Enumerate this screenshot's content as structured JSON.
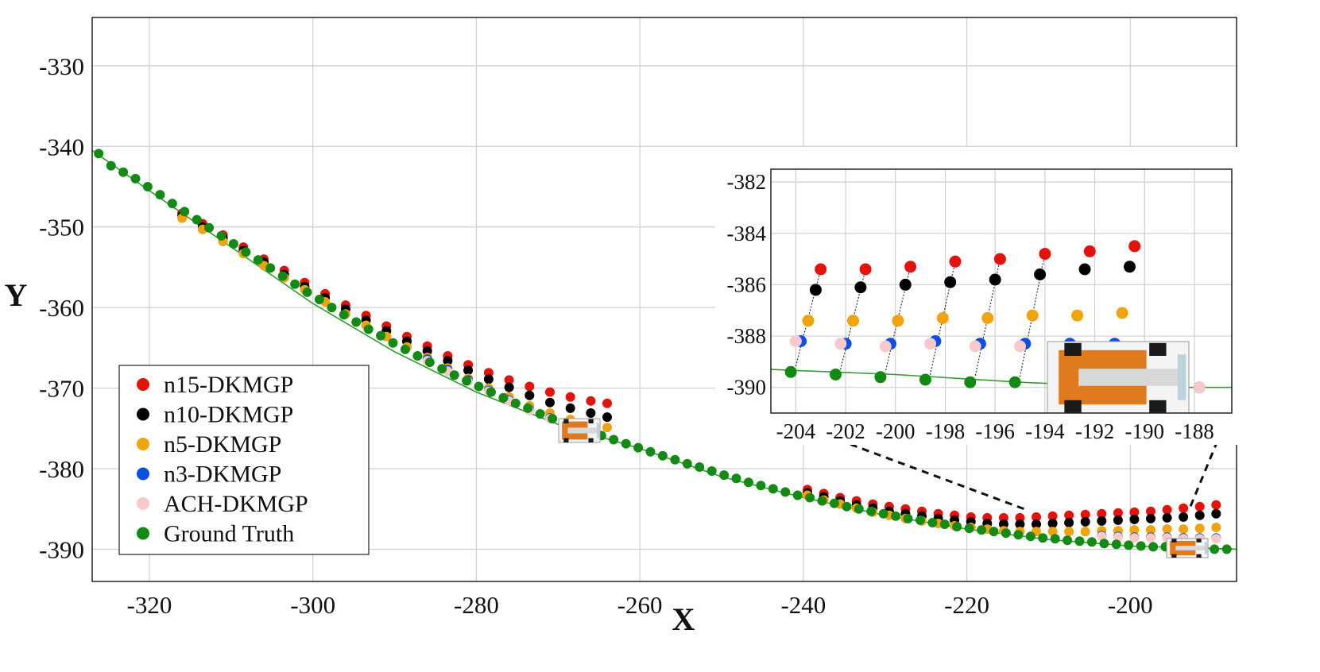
{
  "chart_data": [
    {
      "type": "scatter",
      "title": "",
      "xlabel": "X",
      "ylabel": "Y",
      "xlim": [
        -327,
        -187
      ],
      "ylim": [
        -394,
        -324
      ],
      "xticks": [
        -320,
        -300,
        -280,
        -260,
        -240,
        -220,
        -200
      ],
      "yticks": [
        -330,
        -340,
        -350,
        -360,
        -370,
        -380,
        -390
      ],
      "grid": true,
      "legend_position": "bottom-left",
      "colors": {
        "n15-DKMGP": "#e3120b",
        "n10-DKMGP": "#000000",
        "n5-DKMGP": "#f0a30a",
        "n3-DKMGP": "#0b4fe6",
        "ACH-DKMGP": "#f7c9c9",
        "Ground Truth": "#138a13"
      },
      "legend": [
        "n15-DKMGP",
        "n10-DKMGP",
        "n5-DKMGP",
        "n3-DKMGP",
        "ACH-DKMGP",
        "Ground Truth"
      ],
      "ground_truth_line": {
        "x": [
          -327,
          -320,
          -310,
          -300,
          -290,
          -280,
          -270,
          -265,
          -260,
          -250,
          -240,
          -230,
          -220,
          -210,
          -200,
          -190,
          -187
        ],
        "y": [
          -340.5,
          -345.5,
          -352.5,
          -359.5,
          -365.5,
          -370.5,
          -374.5,
          -376.0,
          -377.5,
          -381.0,
          -383.6,
          -385.8,
          -387.5,
          -388.8,
          -389.6,
          -389.9,
          -390.0
        ]
      },
      "series": [
        {
          "name": "Ground Truth",
          "x": [
            -326.2,
            -324.7,
            -323.2,
            -321.7,
            -320.2,
            -318.7,
            -317.2,
            -315.7,
            -314.2,
            -312.7,
            -311.2,
            -309.7,
            -308.2,
            -306.7,
            -305.2,
            -303.7,
            -302.2,
            -300.7,
            -299.2,
            -297.7,
            -296.2,
            -294.7,
            -293.2,
            -291.7,
            -290.2,
            -288.7,
            -287.2,
            -285.7,
            -284.2,
            -282.7,
            -281.2,
            -279.7,
            -278.2,
            -276.7,
            -275.2,
            -273.7,
            -272.2,
            -270.7,
            -269.2,
            -267.7,
            -266.2,
            -264.7,
            -263.2,
            -261.7,
            -260.2,
            -258.7,
            -257.2,
            -255.7,
            -254.2,
            -252.7,
            -251.2,
            -249.7,
            -248.2,
            -246.7,
            -245.2,
            -243.7,
            -242.2,
            -240.7,
            -239.2,
            -237.7,
            -236.2,
            -234.7,
            -233.2,
            -231.7,
            -230.2,
            -228.7,
            -227.2,
            -225.7,
            -224.2,
            -222.7,
            -221.2,
            -219.7,
            -218.2,
            -216.7,
            -215.2,
            -213.7,
            -212.2,
            -210.7,
            -209.2,
            -207.7,
            -206.2,
            -204.7,
            -203.2,
            -201.7,
            -200.2,
            -198.7,
            -197.2,
            -195.7,
            -194.2,
            -192.7,
            -191.2,
            -189.7,
            -188.2
          ],
          "y": [
            -340.9,
            -342.4,
            -343.2,
            -344.0,
            -345.0,
            -346.0,
            -347.1,
            -348.1,
            -349.1,
            -350.1,
            -351.1,
            -352.1,
            -353.1,
            -354.1,
            -355.1,
            -356.1,
            -357.1,
            -358.1,
            -359.0,
            -360.0,
            -360.9,
            -361.8,
            -362.7,
            -363.5,
            -364.4,
            -365.2,
            -366.0,
            -366.8,
            -367.6,
            -368.4,
            -369.1,
            -369.8,
            -370.5,
            -371.2,
            -371.9,
            -372.5,
            -373.2,
            -373.8,
            -374.3,
            -374.9,
            -375.4,
            -375.9,
            -376.4,
            -376.9,
            -377.4,
            -377.9,
            -378.4,
            -378.9,
            -379.4,
            -379.8,
            -380.3,
            -380.8,
            -381.2,
            -381.7,
            -382.1,
            -382.5,
            -382.9,
            -383.3,
            -383.6,
            -384.0,
            -384.3,
            -384.7,
            -385.0,
            -385.3,
            -385.6,
            -385.9,
            -386.2,
            -386.4,
            -386.7,
            -386.9,
            -387.2,
            -387.4,
            -387.6,
            -387.8,
            -388.0,
            -388.2,
            -388.4,
            -388.6,
            -388.7,
            -388.9,
            -389.0,
            -389.1,
            -389.3,
            -389.4,
            -389.5,
            -389.6,
            -389.7,
            -389.7,
            -389.8,
            -389.9,
            -389.9,
            -390.0,
            -390.0
          ]
        },
        {
          "name": "n15-DKMGP",
          "x": [
            -316.0,
            -313.5,
            -311.0,
            -308.5,
            -306.0,
            -303.5,
            -301.0,
            -298.5,
            -296.0,
            -293.5,
            -291.0,
            -288.5,
            -286.0,
            -283.5,
            -281.0,
            -278.5,
            -276.0,
            -273.5,
            -271.0,
            -268.5,
            -266.0,
            -264.0,
            -239.5,
            -237.5,
            -235.5,
            -233.5,
            -231.5,
            -229.5,
            -227.5,
            -225.5,
            -223.5,
            -221.5,
            -219.5,
            -217.5,
            -215.5,
            -213.5,
            -211.5,
            -209.5,
            -207.5,
            -205.5,
            -203.5,
            -201.5,
            -199.5,
            -197.5,
            -195.5,
            -193.5,
            -191.5,
            -189.5
          ],
          "y": [
            -348.3,
            -349.6,
            -351.0,
            -352.5,
            -354.0,
            -355.4,
            -356.9,
            -358.3,
            -359.7,
            -361.0,
            -362.3,
            -363.6,
            -364.8,
            -366.0,
            -367.1,
            -368.1,
            -369.0,
            -369.8,
            -370.5,
            -371.1,
            -371.6,
            -371.9,
            -382.6,
            -383.1,
            -383.6,
            -384.0,
            -384.4,
            -384.7,
            -385.0,
            -385.3,
            -385.6,
            -385.8,
            -386.0,
            -386.1,
            -386.1,
            -386.1,
            -386.0,
            -385.9,
            -385.8,
            -385.7,
            -385.6,
            -385.5,
            -385.4,
            -385.3,
            -385.1,
            -384.9,
            -384.7,
            -384.5
          ]
        },
        {
          "name": "n10-DKMGP",
          "x": [
            -316.0,
            -313.5,
            -311.0,
            -308.5,
            -306.0,
            -303.5,
            -301.0,
            -298.5,
            -296.0,
            -293.5,
            -291.0,
            -288.5,
            -286.0,
            -283.5,
            -281.0,
            -278.5,
            -276.0,
            -273.5,
            -271.0,
            -268.5,
            -266.0,
            -264.0,
            -239.5,
            -237.5,
            -235.5,
            -233.5,
            -231.5,
            -229.5,
            -227.5,
            -225.5,
            -223.5,
            -221.5,
            -219.5,
            -217.5,
            -215.5,
            -213.5,
            -211.5,
            -209.5,
            -207.5,
            -205.5,
            -203.5,
            -201.5,
            -199.5,
            -197.5,
            -195.5,
            -193.5,
            -191.5,
            -189.5
          ],
          "y": [
            -348.6,
            -350.0,
            -351.4,
            -352.9,
            -354.4,
            -355.9,
            -357.4,
            -358.8,
            -360.2,
            -361.6,
            -362.9,
            -364.2,
            -365.4,
            -366.6,
            -367.8,
            -368.9,
            -369.9,
            -370.9,
            -371.8,
            -372.5,
            -373.1,
            -373.6,
            -383.0,
            -383.5,
            -384.0,
            -384.5,
            -384.9,
            -385.3,
            -385.6,
            -385.9,
            -386.2,
            -386.4,
            -386.6,
            -386.8,
            -386.9,
            -386.9,
            -386.9,
            -386.8,
            -386.7,
            -386.6,
            -386.5,
            -386.4,
            -386.3,
            -386.2,
            -386.1,
            -386.0,
            -385.8,
            -385.6
          ]
        },
        {
          "name": "n5-DKMGP",
          "x": [
            -316.0,
            -313.5,
            -311.0,
            -308.5,
            -306.0,
            -303.5,
            -301.0,
            -298.5,
            -296.0,
            -293.5,
            -291.0,
            -288.5,
            -286.0,
            -283.5,
            -281.0,
            -278.5,
            -276.0,
            -273.5,
            -271.0,
            -268.5,
            -266.0,
            -264.0,
            -239.5,
            -237.5,
            -235.5,
            -233.5,
            -231.5,
            -229.5,
            -227.5,
            -225.5,
            -223.5,
            -221.5,
            -219.5,
            -217.5,
            -215.5,
            -213.5,
            -211.5,
            -209.5,
            -207.5,
            -205.5,
            -203.5,
            -201.5,
            -199.5,
            -197.5,
            -195.5,
            -193.5,
            -191.5,
            -189.5
          ],
          "y": [
            -348.9,
            -350.3,
            -351.8,
            -353.3,
            -354.8,
            -356.3,
            -357.8,
            -359.3,
            -360.8,
            -362.2,
            -363.6,
            -364.9,
            -366.2,
            -367.5,
            -368.8,
            -370.0,
            -371.1,
            -372.2,
            -373.1,
            -373.9,
            -374.5,
            -374.9,
            -383.3,
            -383.9,
            -384.4,
            -384.9,
            -385.4,
            -385.8,
            -386.2,
            -386.5,
            -386.8,
            -387.1,
            -387.3,
            -387.5,
            -387.7,
            -387.8,
            -387.8,
            -387.8,
            -387.8,
            -387.8,
            -387.7,
            -387.7,
            -387.6,
            -387.6,
            -387.5,
            -387.5,
            -387.4,
            -387.3
          ]
        },
        {
          "name": "n3-DKMGP",
          "x": [
            -286.0,
            -283.5,
            -281.0,
            -278.5,
            -276.0,
            -273.5,
            -271.0,
            -268.5,
            -266.0,
            -203.5,
            -201.5,
            -199.5,
            -197.5,
            -195.5,
            -193.5,
            -191.5,
            -189.5
          ],
          "y": [
            -366.4,
            -367.7,
            -369.0,
            -370.3,
            -371.5,
            -372.7,
            -373.7,
            -374.6,
            -375.3,
            -388.3,
            -388.4,
            -388.5,
            -388.5,
            -388.5,
            -388.6,
            -388.6,
            -388.6
          ]
        },
        {
          "name": "ACH-DKMGP",
          "x": [
            -286.0,
            -283.5,
            -281.0,
            -278.5,
            -276.0,
            -273.5,
            -271.0,
            -268.5,
            -266.0,
            -203.5,
            -201.5,
            -199.5,
            -197.5,
            -195.5,
            -193.5,
            -191.5,
            -189.5
          ],
          "y": [
            -366.6,
            -367.9,
            -369.2,
            -370.4,
            -371.6,
            -372.8,
            -373.8,
            -374.7,
            -375.4,
            -388.4,
            -388.5,
            -388.6,
            -388.6,
            -388.6,
            -388.7,
            -388.7,
            -388.7
          ]
        }
      ]
    },
    {
      "type": "scatter",
      "title": "",
      "xlabel": "",
      "ylabel": "",
      "xlim": [
        -205,
        -186.5
      ],
      "ylim": [
        -391,
        -381.5
      ],
      "xticks": [
        -204,
        -202,
        -200,
        -198,
        -196,
        -194,
        -192,
        -190,
        -188
      ],
      "yticks": [
        -382,
        -384,
        -386,
        -388,
        -390
      ],
      "grid": true,
      "ground_truth_line": {
        "x": [
          -205,
          -200,
          -195,
          -190,
          -186.5
        ],
        "y": [
          -389.3,
          -389.5,
          -389.8,
          -390.0,
          -390.0
        ]
      },
      "series": [
        {
          "name": "n15-DKMGP",
          "x": [
            -203.0,
            -201.2,
            -199.4,
            -197.6,
            -195.8,
            -194.0,
            -192.2,
            -190.4
          ],
          "y": [
            -385.4,
            -385.4,
            -385.3,
            -385.1,
            -385.0,
            -384.8,
            -384.7,
            -384.5
          ]
        },
        {
          "name": "n10-DKMGP",
          "x": [
            -203.2,
            -201.4,
            -199.6,
            -197.8,
            -196.0,
            -194.2,
            -192.4,
            -190.6
          ],
          "y": [
            -386.2,
            -386.1,
            -386.0,
            -385.9,
            -385.8,
            -385.6,
            -385.4,
            -385.3
          ]
        },
        {
          "name": "n5-DKMGP",
          "x": [
            -203.5,
            -201.7,
            -199.9,
            -198.1,
            -196.3,
            -194.5,
            -192.7,
            -190.9
          ],
          "y": [
            -387.4,
            -387.4,
            -387.4,
            -387.3,
            -387.3,
            -387.2,
            -387.2,
            -387.1
          ]
        },
        {
          "name": "n3-DKMGP",
          "x": [
            -203.8,
            -202.0,
            -200.2,
            -198.4,
            -196.6,
            -194.8,
            -193.0,
            -191.2,
            -187.8
          ],
          "y": [
            -388.2,
            -388.3,
            -388.3,
            -388.2,
            -388.3,
            -388.3,
            -388.3,
            -388.3,
            -390.0
          ]
        },
        {
          "name": "ACH-DKMGP",
          "x": [
            -204.0,
            -202.2,
            -200.4,
            -198.6,
            -196.8,
            -195.0,
            -189.8,
            -187.8
          ],
          "y": [
            -388.2,
            -388.3,
            -388.4,
            -388.3,
            -388.4,
            -388.4,
            -390.0,
            -390.0
          ]
        },
        {
          "name": "Ground Truth",
          "x": [
            -204.2,
            -202.4,
            -200.6,
            -198.8,
            -197.0,
            -195.2
          ],
          "y": [
            -389.4,
            -389.5,
            -389.6,
            -389.7,
            -389.8,
            -389.8
          ]
        }
      ]
    }
  ]
}
